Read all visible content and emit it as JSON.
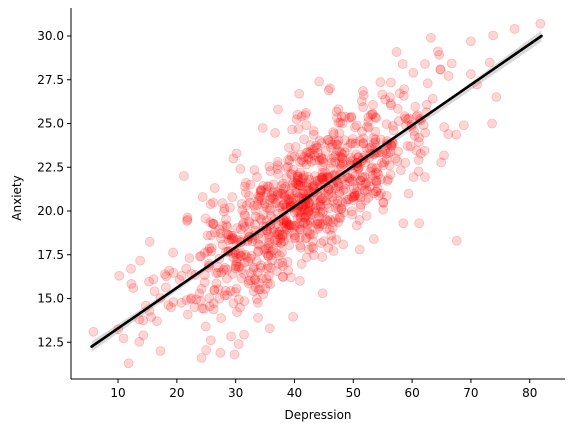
{
  "chart_data": {
    "type": "scatter",
    "title": "",
    "xlabel": "Depression",
    "ylabel": "Anxiety",
    "xlim": [
      2,
      86
    ],
    "ylim": [
      10.4,
      31.6
    ],
    "xticks": [
      10,
      20,
      30,
      40,
      50,
      60,
      70,
      80
    ],
    "yticks": [
      12.5,
      15.0,
      17.5,
      20.0,
      22.5,
      25.0,
      27.5,
      30.0
    ],
    "xtick_labels": [
      "10",
      "20",
      "30",
      "40",
      "50",
      "60",
      "70",
      "80"
    ],
    "ytick_labels": [
      "12.5",
      "15.0",
      "17.5",
      "20.0",
      "22.5",
      "25.0",
      "27.5",
      "30.0"
    ],
    "grid": false,
    "legend": "none",
    "colors": {
      "points": "#ff0000",
      "regression_line": "#000000",
      "confidence_band": "#bfbfbf"
    },
    "regression": {
      "x": [
        5.5,
        82
      ],
      "y": [
        12.25,
        30.0
      ]
    },
    "confidence_band": {
      "x": [
        5.5,
        24,
        44,
        64,
        82
      ],
      "upper": [
        12.55,
        16.62,
        21.17,
        25.87,
        30.32
      ],
      "lower": [
        11.95,
        16.38,
        20.97,
        25.53,
        29.68
      ]
    },
    "scatter_summary": {
      "points_approx": 900,
      "x_center": 42,
      "x_spread": 11,
      "slope": 0.232,
      "intercept": 10.97,
      "residual_spread": 1.9
    },
    "points": [
      [
        5.8,
        13.1
      ],
      [
        11.8,
        11.3
      ],
      [
        10.2,
        16.3
      ],
      [
        12.2,
        16.7
      ],
      [
        12.6,
        15.6
      ],
      [
        14.3,
        12.9
      ],
      [
        13.6,
        13.8
      ],
      [
        17.2,
        12.0
      ],
      [
        19.0,
        14.5
      ],
      [
        18.7,
        16.6
      ],
      [
        21.2,
        22.0
      ],
      [
        24.2,
        11.6
      ],
      [
        29.8,
        11.8
      ],
      [
        27.4,
        11.9
      ],
      [
        30.5,
        12.4
      ],
      [
        35.8,
        13.3
      ],
      [
        33.8,
        13.9
      ],
      [
        44.8,
        15.3
      ],
      [
        53.5,
        18.4
      ],
      [
        58.5,
        19.3
      ],
      [
        61.2,
        19.3
      ],
      [
        67.6,
        18.3
      ],
      [
        73.6,
        25.0
      ],
      [
        68.8,
        24.9
      ],
      [
        70.0,
        29.7
      ],
      [
        81.8,
        30.7
      ],
      [
        63.2,
        29.9
      ],
      [
        62.2,
        28.4
      ],
      [
        58.4,
        28.4
      ],
      [
        60.2,
        27.9
      ],
      [
        64.8,
        28.1
      ],
      [
        44.2,
        27.4
      ],
      [
        45.8,
        26.9
      ],
      [
        40.8,
        26.7
      ],
      [
        37.2,
        25.8
      ],
      [
        41.2,
        25.4
      ],
      [
        21.8,
        19.5
      ],
      [
        24.4,
        20.8
      ],
      [
        29.6,
        23.0
      ],
      [
        30.8,
        22.4
      ]
    ]
  }
}
